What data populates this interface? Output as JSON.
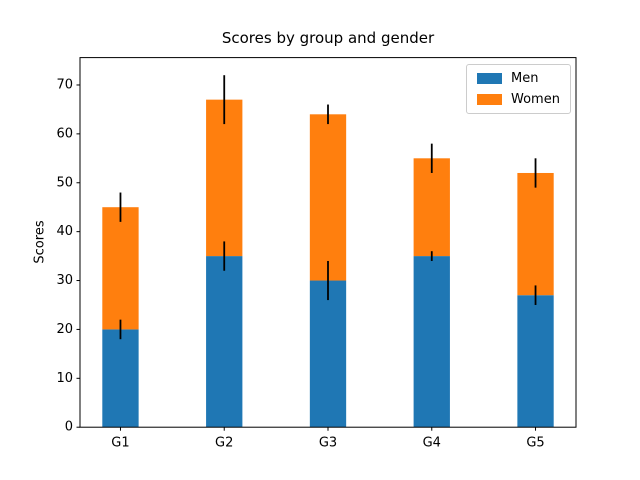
{
  "chart_data": {
    "type": "bar",
    "stacked": true,
    "title": "Scores by group and gender",
    "xlabel": "",
    "ylabel": "Scores",
    "categories": [
      "G1",
      "G2",
      "G3",
      "G4",
      "G5"
    ],
    "series": [
      {
        "name": "Men",
        "color": "#1f77b4",
        "values": [
          20,
          35,
          30,
          35,
          27
        ],
        "std": [
          2,
          3,
          4,
          1,
          2
        ]
      },
      {
        "name": "Women",
        "color": "#ff7f0e",
        "values": [
          25,
          32,
          34,
          20,
          25
        ],
        "std": [
          3,
          5,
          2,
          3,
          3
        ]
      }
    ],
    "stack_totals": [
      45,
      67,
      64,
      55,
      52
    ],
    "yticks": [
      0,
      10,
      20,
      30,
      40,
      50,
      60,
      70
    ],
    "ylim": [
      0,
      75.6
    ],
    "xlim": [
      -0.39,
      4.39
    ],
    "bar_width": 0.35,
    "error_bar_color": "#000000",
    "axis_color": "#000000",
    "background_color": "#ffffff",
    "grid": false,
    "legend_position": "upper right"
  }
}
